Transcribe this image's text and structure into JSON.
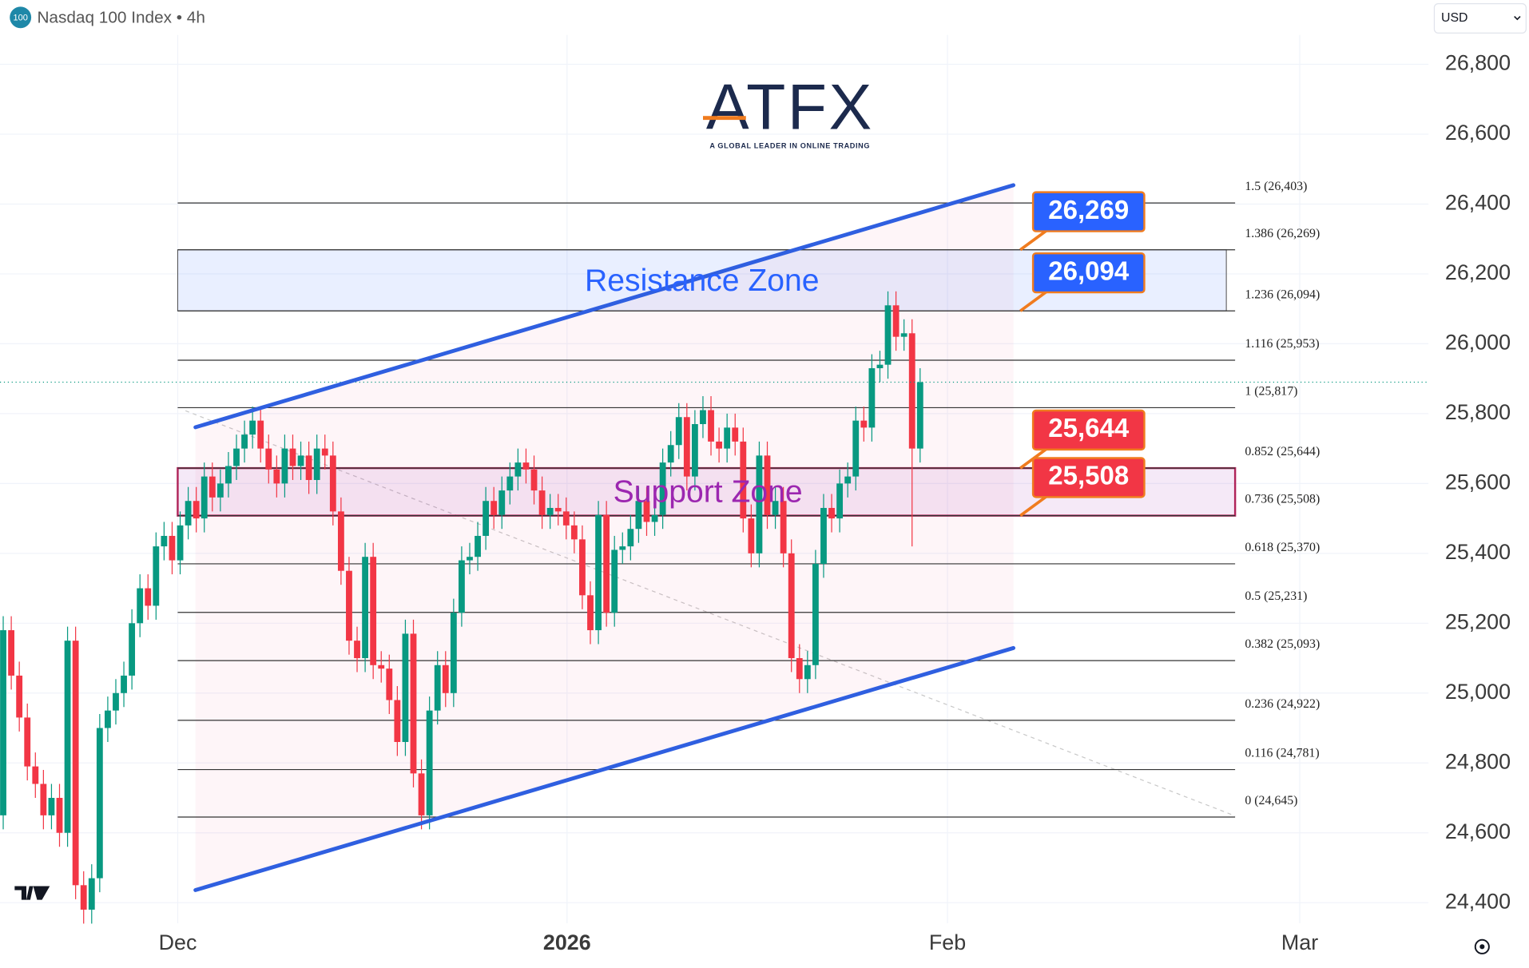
{
  "header": {
    "badge": "100",
    "title": "Nasdaq 100 Index • 4h",
    "currency": "USD"
  },
  "logo": {
    "name": "ATFX",
    "tagline": "A GLOBAL LEADER IN ONLINE TRADING"
  },
  "chart_data": {
    "type": "candlestick",
    "categories": [
      null,
      null,
      null,
      null,
      null,
      null,
      null,
      null,
      null,
      null,
      null,
      null,
      null,
      null,
      null,
      null,
      null,
      null,
      null,
      null,
      null,
      null,
      null,
      null,
      null,
      null,
      null,
      null,
      null,
      null,
      null,
      null,
      null,
      null,
      null,
      null,
      null,
      null,
      null,
      null,
      null,
      null,
      null,
      null,
      null,
      null,
      null,
      null,
      null,
      null,
      null,
      null,
      null,
      null,
      null,
      null,
      null,
      null,
      null,
      null,
      null,
      null,
      null,
      null,
      null,
      null,
      null,
      null,
      null,
      null,
      null,
      null,
      null,
      null,
      null,
      null,
      null,
      null,
      null,
      null,
      null,
      null,
      null,
      null,
      null,
      null,
      null,
      null,
      null,
      null,
      null,
      null,
      null,
      null,
      null,
      null,
      null,
      null,
      null,
      null,
      null,
      null,
      null,
      null,
      null,
      null,
      null,
      null,
      null,
      null,
      null,
      null,
      null,
      null,
      null
    ],
    "open": [
      24650,
      25180,
      25050,
      24930,
      24790,
      24740,
      24650,
      24700,
      24600,
      25150,
      24450,
      24380,
      24470,
      24900,
      24950,
      25000,
      25050,
      25200,
      25300,
      25250,
      25420,
      25450,
      25380,
      25480,
      25550,
      25500,
      25620,
      25560,
      25600,
      25650,
      25700,
      25740,
      25780,
      25700,
      25640,
      25600,
      25700,
      25650,
      25680,
      25610,
      25700,
      25680,
      25520,
      25350,
      25150,
      25100,
      25390,
      25080,
      25070,
      24980,
      24860,
      25170,
      24770,
      24650,
      24950,
      25080,
      25000,
      25230,
      25380,
      25390,
      25450,
      25550,
      25510,
      25580,
      25620,
      25660,
      25640,
      25580,
      25510,
      25530,
      25520,
      25480,
      25440,
      25280,
      25180,
      25510,
      25230,
      25410,
      25420,
      25470,
      25550,
      25490,
      25510,
      25660,
      25710,
      25790,
      25620,
      25770,
      25810,
      25720,
      25700,
      25760,
      25720,
      25500,
      25400,
      25680,
      25510,
      25550,
      25400,
      25100,
      25040,
      25080,
      25370,
      25530,
      25500,
      25600,
      25620,
      25780,
      25760,
      25930,
      25940,
      26110,
      26020,
      26030,
      25700
    ],
    "high": [
      25220,
      25220,
      25090,
      24970,
      24830,
      24780,
      24740,
      24740,
      25190,
      25190,
      24490,
      24510,
      24940,
      24990,
      25040,
      25090,
      25240,
      25340,
      25340,
      25460,
      25490,
      25490,
      25520,
      25590,
      25590,
      25660,
      25660,
      25640,
      25690,
      25740,
      25780,
      25820,
      25820,
      25740,
      25680,
      25740,
      25740,
      25720,
      25720,
      25740,
      25740,
      25720,
      25560,
      25390,
      25190,
      25430,
      25430,
      25120,
      25110,
      25020,
      25210,
      25210,
      24810,
      24990,
      25120,
      25120,
      25270,
      25420,
      25430,
      25490,
      25590,
      25590,
      25620,
      25660,
      25700,
      25700,
      25680,
      25620,
      25570,
      25570,
      25560,
      25520,
      25480,
      25320,
      25550,
      25550,
      25450,
      25460,
      25510,
      25590,
      25590,
      25550,
      25700,
      25750,
      25830,
      25830,
      25810,
      25850,
      25850,
      25760,
      25800,
      25800,
      25760,
      25540,
      25720,
      25720,
      25590,
      25590,
      25440,
      25140,
      25120,
      25410,
      25570,
      25570,
      25640,
      25660,
      25820,
      25820,
      25970,
      25980,
      26150,
      26150,
      26070,
      26070,
      25930
    ],
    "low": [
      24610,
      25010,
      24890,
      24750,
      24700,
      24610,
      24610,
      24560,
      24560,
      24410,
      24340,
      24340,
      24430,
      24860,
      24910,
      24960,
      25010,
      25160,
      25210,
      25210,
      25380,
      25340,
      25340,
      25440,
      25460,
      25460,
      25520,
      25520,
      25560,
      25610,
      25660,
      25700,
      25660,
      25600,
      25560,
      25560,
      25610,
      25610,
      25570,
      25570,
      25640,
      25480,
      25310,
      25110,
      25060,
      25060,
      25040,
      25030,
      24940,
      24820,
      24820,
      24730,
      24610,
      24610,
      24910,
      24960,
      24960,
      25190,
      25340,
      25350,
      25410,
      25470,
      25470,
      25540,
      25580,
      25600,
      25540,
      25470,
      25470,
      25480,
      25440,
      25400,
      25240,
      25140,
      25140,
      25190,
      25190,
      25370,
      25380,
      25430,
      25450,
      25450,
      25470,
      25620,
      25670,
      25580,
      25580,
      25730,
      25680,
      25660,
      25660,
      25680,
      25460,
      25360,
      25360,
      25470,
      25470,
      25360,
      25060,
      25000,
      25000,
      25040,
      25330,
      25460,
      25460,
      25560,
      25580,
      25720,
      25720,
      25890,
      25900,
      25980,
      25980,
      25420,
      25660
    ],
    "close": [
      25180,
      25050,
      24930,
      24790,
      24740,
      24650,
      24700,
      24600,
      25150,
      24450,
      24380,
      24470,
      24900,
      24950,
      25000,
      25050,
      25200,
      25300,
      25250,
      25420,
      25450,
      25380,
      25480,
      25550,
      25500,
      25620,
      25560,
      25600,
      25650,
      25700,
      25740,
      25780,
      25700,
      25640,
      25600,
      25700,
      25650,
      25680,
      25610,
      25700,
      25680,
      25520,
      25350,
      25150,
      25100,
      25390,
      25080,
      25070,
      24980,
      24860,
      25170,
      24770,
      24650,
      24950,
      25080,
      25000,
      25230,
      25380,
      25390,
      25450,
      25550,
      25510,
      25580,
      25620,
      25660,
      25640,
      25580,
      25510,
      25530,
      25520,
      25480,
      25440,
      25280,
      25180,
      25510,
      25230,
      25410,
      25420,
      25470,
      25550,
      25490,
      25510,
      25660,
      25710,
      25790,
      25620,
      25770,
      25810,
      25720,
      25700,
      25760,
      25720,
      25500,
      25400,
      25680,
      25510,
      25550,
      25400,
      25100,
      25040,
      25080,
      25370,
      25530,
      25500,
      25600,
      25620,
      25780,
      25760,
      25930,
      25940,
      26110,
      26020,
      26030,
      25700,
      25890
    ],
    "up_color": "#089981",
    "down_color": "#f23645",
    "xlim": [
      -0.4,
      177.2
    ],
    "xticks": [
      {
        "value": 21.7,
        "label": "Dec"
      },
      {
        "value": 70.1,
        "label": "2026"
      },
      {
        "value": 117.4,
        "label": "Feb"
      },
      {
        "value": 161.2,
        "label": "Mar"
      }
    ],
    "ylim": [
      24341,
      26884
    ],
    "yticks": [
      {
        "value": 24400,
        "label": "24,400"
      },
      {
        "value": 24600,
        "label": "24,600"
      },
      {
        "value": 24800,
        "label": "24,800"
      },
      {
        "value": 25000,
        "label": "25,000"
      },
      {
        "value": 25200,
        "label": "25,200"
      },
      {
        "value": 25400,
        "label": "25,400"
      },
      {
        "value": 25600,
        "label": "25,600"
      },
      {
        "value": 25800,
        "label": "25,800"
      },
      {
        "value": 26000,
        "label": "26,000"
      },
      {
        "value": 26200,
        "label": "26,200"
      },
      {
        "value": 26400,
        "label": "26,400"
      },
      {
        "value": 26600,
        "label": "26,600"
      },
      {
        "value": 26800,
        "label": "26,800"
      }
    ],
    "fib_levels": [
      {
        "value": 26403,
        "label": "1.5 (26,403)"
      },
      {
        "value": 26269,
        "label": "1.386 (26,269)"
      },
      {
        "value": 26094,
        "label": "1.236 (26,094)"
      },
      {
        "value": 25953,
        "label": "1.116 (25,953)"
      },
      {
        "value": 25817,
        "label": "1 (25,817)"
      },
      {
        "value": 25644,
        "label": "0.852 (25,644)"
      },
      {
        "value": 25508,
        "label": "0.736 (25,508)"
      },
      {
        "value": 25370,
        "label": "0.618 (25,370)"
      },
      {
        "value": 25231,
        "label": "0.5 (25,231)"
      },
      {
        "value": 25093,
        "label": "0.382 (25,093)"
      },
      {
        "value": 24922,
        "label": "0.236 (24,922)"
      },
      {
        "value": 24781,
        "label": "0.116 (24,781)"
      },
      {
        "value": 24645,
        "label": "0 (24,645)"
      }
    ],
    "zones": [
      {
        "name": "Resistance Zone",
        "range": [
          26094,
          26269
        ],
        "color": "#2962ff"
      },
      {
        "name": "Support Zone",
        "range": [
          25508,
          25644
        ],
        "color": "#9c27b0"
      }
    ],
    "price_labels": {
      "values": [
        26269,
        26094,
        25644,
        25508
      ],
      "value_labels": [
        "26,269",
        "26,094",
        "25,644",
        "25,508"
      ],
      "colors": [
        "#2962ff",
        "#2962ff",
        "#f23645",
        "#f23645"
      ]
    },
    "channel": {
      "color": "#2f5fe0",
      "x": [
        [
          23.9,
          125.6
        ],
        [
          23.9,
          125.6
        ]
      ],
      "y": [
        [
          25761,
          26454
        ],
        [
          24436,
          25129
        ]
      ]
    }
  }
}
